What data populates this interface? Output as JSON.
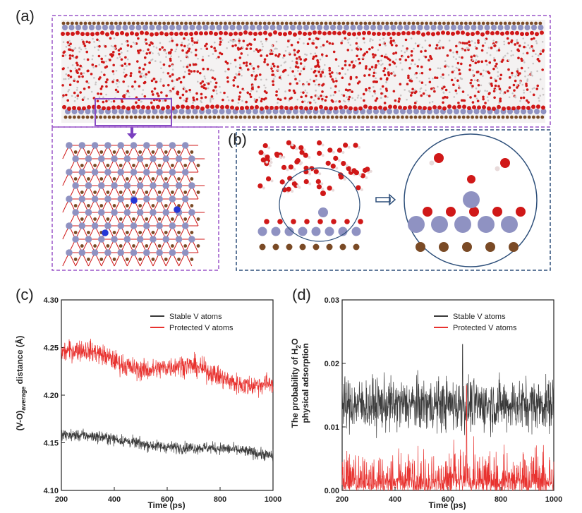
{
  "panels": {
    "a": "(a)",
    "b": "(b)",
    "c": "(c)",
    "d": "(d)"
  },
  "colors": {
    "stable": "#3a3a3a",
    "protected": "#e8322f",
    "frame": "#9a55c8",
    "frame_b": "#2d4f7a",
    "oxygen": "#d01818",
    "vanadium": "#8f92c2",
    "carbon": "#7a4a25"
  },
  "chart_data": [
    {
      "id": "c",
      "type": "line",
      "xlabel": "Time (ps)",
      "ylabel_main": "(V-O)",
      "ylabel_sub": "average",
      "ylabel_tail": " distance (Å)",
      "xlim": [
        200,
        1000
      ],
      "ylim": [
        4.1,
        4.3
      ],
      "xticks": [
        200,
        400,
        600,
        800,
        1000
      ],
      "yticks": [
        "4.10",
        "4.15",
        "4.20",
        "4.25",
        "4.30"
      ],
      "series": [
        {
          "name": "Stable V atoms",
          "start": 4.158,
          "end": 4.137,
          "noise": 0.006
        },
        {
          "name": "Protected V atoms",
          "start": 4.245,
          "end": 4.212,
          "noise": 0.011
        }
      ]
    },
    {
      "id": "d",
      "type": "line",
      "xlabel": "Time (ps)",
      "ylabel_line1_main": "The probability of H",
      "ylabel_line1_sub": "2",
      "ylabel_line1_tail": "O",
      "ylabel_line2": "physical  adsorption",
      "xlim": [
        200,
        1000
      ],
      "ylim": [
        0.0,
        0.03
      ],
      "xticks": [
        200,
        400,
        600,
        800,
        1000
      ],
      "yticks": [
        "0.00",
        "0.01",
        "0.02",
        "0.03"
      ],
      "series": [
        {
          "name": "Stable V atoms",
          "mean": 0.0135,
          "noise": 0.004,
          "spike_x": 655,
          "spike_y": 0.023
        },
        {
          "name": "Protected V atoms",
          "mean": 0.0025,
          "noise": 0.004,
          "spike_x": 670,
          "spike_y": 0.0165
        }
      ]
    }
  ]
}
